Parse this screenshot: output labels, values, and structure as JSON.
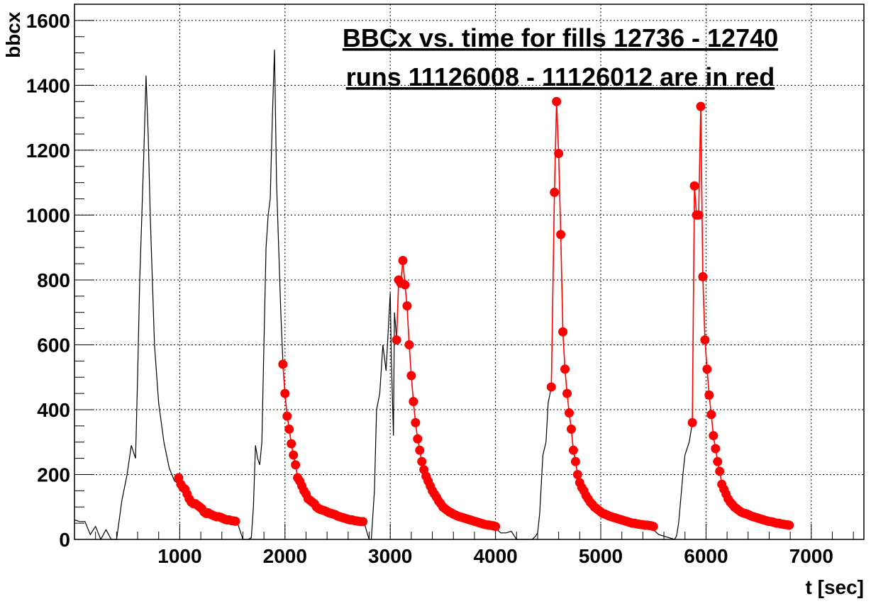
{
  "chart_data": {
    "type": "line",
    "title": "BBCx vs. time for fills 12736 - 12740",
    "subtitle": "runs 11126008 - 11126012 are in red",
    "xlabel": "t [sec]",
    "ylabel": "bbcx",
    "xlim": [
      0,
      7500
    ],
    "ylim": [
      0,
      1650
    ],
    "x_ticks": [
      1000,
      2000,
      3000,
      4000,
      5000,
      6000,
      7000
    ],
    "y_ticks": [
      0,
      200,
      400,
      600,
      800,
      1000,
      1200,
      1400,
      1600
    ],
    "grid": true,
    "colors": {
      "black_series": "#000000",
      "red_series": "#ff0000"
    },
    "series": [
      {
        "color": "#000000",
        "marker": "none",
        "x": [
          0,
          50,
          100,
          150,
          200,
          250,
          300,
          350,
          400,
          450,
          500,
          540,
          580,
          600,
          620,
          640,
          660,
          680,
          700,
          720,
          740,
          760,
          800,
          850,
          900,
          950,
          1000
        ],
        "y": [
          60,
          55,
          55,
          15,
          40,
          0,
          30,
          0,
          0,
          120,
          200,
          290,
          250,
          500,
          800,
          1000,
          1200,
          1430,
          1250,
          1000,
          800,
          600,
          420,
          300,
          220,
          180,
          170
        ]
      },
      {
        "color": "#000000",
        "marker": "none",
        "x": [
          1550,
          1580,
          1600,
          1620,
          1650,
          1680,
          1700,
          1720,
          1740,
          1760,
          1780,
          1800,
          1820,
          1840,
          1860,
          1880,
          1900,
          1920,
          1940,
          1960,
          1980
        ],
        "y": [
          50,
          20,
          0,
          0,
          0,
          5,
          100,
          290,
          250,
          230,
          300,
          600,
          900,
          1000,
          1050,
          1300,
          1510,
          1100,
          900,
          700,
          550
        ]
      },
      {
        "color": "#000000",
        "marker": "none",
        "x": [
          2750,
          2780,
          2800,
          2820,
          2850,
          2870,
          2900,
          2930,
          2960,
          3000,
          3010,
          3030,
          3040,
          3060
        ],
        "y": [
          55,
          20,
          0,
          0,
          150,
          400,
          450,
          600,
          520,
          760,
          560,
          320,
          700,
          620
        ]
      },
      {
        "color": "#000000",
        "marker": "none",
        "x": [
          3950,
          4000,
          4050,
          4100,
          4150,
          4200,
          4250,
          4300,
          4350,
          4380,
          4400,
          4420,
          4450,
          4480,
          4500,
          4530
        ],
        "y": [
          40,
          35,
          20,
          20,
          25,
          0,
          0,
          0,
          0,
          10,
          20,
          80,
          260,
          300,
          420,
          470
        ]
      },
      {
        "color": "#000000",
        "marker": "none",
        "x": [
          5500,
          5550,
          5600,
          5650,
          5700,
          5720,
          5740,
          5780,
          5800,
          5840,
          5870
        ],
        "y": [
          30,
          15,
          10,
          5,
          0,
          10,
          50,
          200,
          260,
          300,
          360
        ]
      },
      {
        "color": "#ff0000",
        "marker": "circle",
        "x": [
          990,
          1010,
          1030,
          1050,
          1070,
          1090,
          1110,
          1130,
          1150,
          1170,
          1190,
          1210,
          1230,
          1250,
          1270,
          1290,
          1310,
          1330,
          1350,
          1370,
          1390,
          1410,
          1430,
          1450,
          1470,
          1490,
          1510,
          1530
        ],
        "y": [
          190,
          170,
          160,
          155,
          140,
          125,
          115,
          110,
          110,
          105,
          100,
          95,
          85,
          80,
          82,
          78,
          75,
          72,
          70,
          70,
          68,
          65,
          62,
          60,
          60,
          58,
          57,
          56
        ]
      },
      {
        "color": "#ff0000",
        "marker": "circle",
        "x": [
          1980,
          2000,
          2020,
          2040,
          2060,
          2080,
          2100,
          2120,
          2140,
          2160,
          2180,
          2200,
          2220,
          2240,
          2260,
          2280,
          2300,
          2320,
          2340,
          2360,
          2380,
          2400,
          2420,
          2440,
          2460,
          2480,
          2500,
          2520,
          2540,
          2560,
          2580,
          2600,
          2620,
          2640,
          2660,
          2680,
          2700,
          2720,
          2740
        ],
        "y": [
          540,
          450,
          380,
          340,
          295,
          260,
          230,
          190,
          180,
          165,
          150,
          140,
          125,
          120,
          115,
          110,
          100,
          95,
          92,
          90,
          88,
          85,
          82,
          80,
          78,
          76,
          72,
          70,
          68,
          66,
          64,
          62,
          60,
          60,
          58,
          57,
          56,
          55,
          55
        ]
      },
      {
        "color": "#ff0000",
        "marker": "circle",
        "x": [
          3060,
          3080,
          3100,
          3120,
          3140,
          3160,
          3180,
          3200,
          3220,
          3240,
          3260,
          3280,
          3300,
          3320,
          3340,
          3360,
          3380,
          3400,
          3420,
          3440,
          3460,
          3480,
          3500,
          3520,
          3540,
          3560,
          3580,
          3600,
          3620,
          3640,
          3660,
          3680,
          3700,
          3720,
          3740,
          3760,
          3780,
          3800,
          3820,
          3840,
          3860,
          3880,
          3900,
          3920,
          3940,
          3960,
          3980,
          4000
        ],
        "y": [
          615,
          800,
          790,
          860,
          785,
          720,
          600,
          505,
          425,
          360,
          310,
          275,
          240,
          215,
          195,
          180,
          165,
          150,
          140,
          130,
          118,
          110,
          100,
          95,
          90,
          85,
          82,
          78,
          75,
          72,
          70,
          68,
          66,
          64,
          62,
          60,
          58,
          56,
          54,
          52,
          50,
          48,
          46,
          45,
          44,
          43,
          42,
          40
        ]
      },
      {
        "color": "#ff0000",
        "marker": "circle",
        "x": [
          4530,
          4560,
          4580,
          4600,
          4620,
          4640,
          4660,
          4680,
          4700,
          4720,
          4740,
          4760,
          4780,
          4800,
          4820,
          4840,
          4860,
          4880,
          4900,
          4920,
          4940,
          4960,
          4980,
          5000,
          5020,
          5040,
          5060,
          5080,
          5100,
          5120,
          5140,
          5160,
          5180,
          5200,
          5220,
          5240,
          5260,
          5280,
          5300,
          5320,
          5340,
          5360,
          5380,
          5400,
          5420,
          5440,
          5460,
          5480,
          5500
        ],
        "y": [
          470,
          1070,
          1350,
          1190,
          940,
          640,
          525,
          450,
          390,
          340,
          275,
          240,
          200,
          175,
          160,
          150,
          135,
          125,
          115,
          108,
          100,
          95,
          90,
          85,
          80,
          78,
          75,
          72,
          70,
          68,
          66,
          64,
          62,
          60,
          58,
          56,
          54,
          52,
          50,
          50,
          48,
          47,
          46,
          45,
          44,
          44,
          43,
          42,
          40
        ]
      },
      {
        "color": "#ff0000",
        "marker": "circle",
        "x": [
          5870,
          5890,
          5910,
          5930,
          5950,
          5970,
          5990,
          6010,
          6030,
          6050,
          6070,
          6090,
          6110,
          6130,
          6150,
          6170,
          6190,
          6210,
          6230,
          6250,
          6270,
          6290,
          6310,
          6330,
          6350,
          6370,
          6390,
          6410,
          6430,
          6450,
          6470,
          6490,
          6510,
          6530,
          6550,
          6570,
          6590,
          6610,
          6630,
          6650,
          6670,
          6690,
          6710,
          6730,
          6750,
          6770,
          6790
        ],
        "y": [
          360,
          1090,
          1000,
          1000,
          1335,
          810,
          615,
          525,
          445,
          385,
          320,
          280,
          240,
          210,
          170,
          155,
          140,
          125,
          115,
          108,
          100,
          95,
          90,
          85,
          82,
          80,
          78,
          75,
          72,
          70,
          68,
          66,
          64,
          62,
          60,
          58,
          56,
          55,
          54,
          52,
          50,
          50,
          48,
          47,
          46,
          45,
          44
        ]
      }
    ]
  }
}
